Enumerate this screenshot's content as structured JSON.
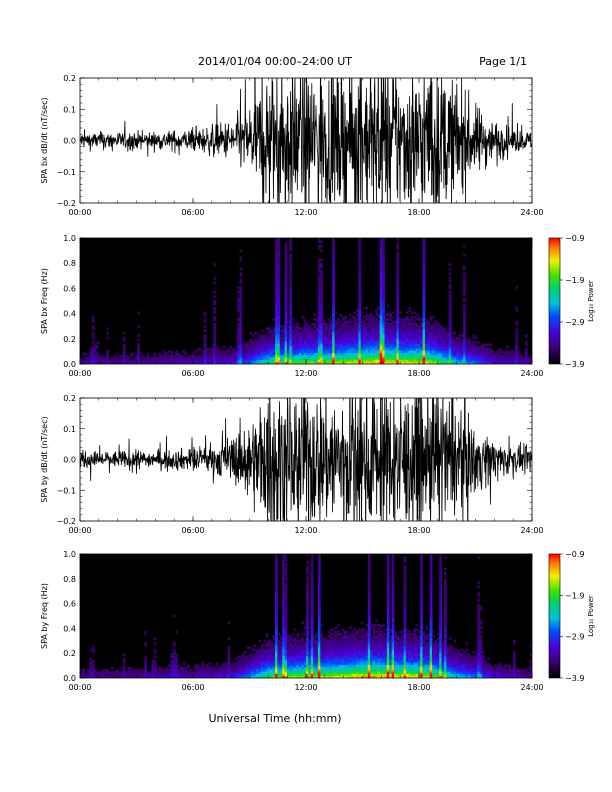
{
  "header": {
    "title": "2014/01/04   00:00–24:00 UT",
    "page": "Page 1/1"
  },
  "footer": {
    "xlabel": "Universal Time (hh:mm)"
  },
  "colors": {
    "trace": "#000000",
    "spectro_bg": "#000000"
  },
  "chart_data": [
    {
      "type": "line",
      "ylabel": "SPA bx dB/dt (nT/sec)",
      "xlim": [
        0,
        24
      ],
      "ylim": [
        -0.2,
        0.2
      ],
      "xticks": [
        "00:00",
        "06:00",
        "12:00",
        "18:00",
        "24:00"
      ],
      "yticks": [
        "−0.2",
        "−0.1",
        "0.0",
        "0.1",
        "0.2"
      ],
      "ytick_values": [
        -0.2,
        -0.1,
        0.0,
        0.1,
        0.2
      ],
      "series": [
        {
          "x": [
            0,
            2,
            4,
            6,
            7,
            8,
            9,
            10,
            11,
            12,
            13,
            14,
            15,
            16,
            17,
            18,
            19,
            20,
            21,
            22,
            23,
            24
          ],
          "amplitude": [
            0.03,
            0.03,
            0.03,
            0.04,
            0.05,
            0.07,
            0.12,
            0.25,
            0.25,
            0.25,
            0.25,
            0.25,
            0.25,
            0.25,
            0.25,
            0.25,
            0.25,
            0.2,
            0.12,
            0.07,
            0.04,
            0.03
          ]
        }
      ]
    },
    {
      "type": "heatmap",
      "ylabel": "SPA bx Freq (Hz)",
      "xlim": [
        0,
        24
      ],
      "ylim": [
        0.0,
        1.0
      ],
      "xticks": [
        "00:00",
        "06:00",
        "12:00",
        "18:00",
        "24:00"
      ],
      "yticks": [
        "0.0",
        "0.2",
        "0.4",
        "0.6",
        "0.8",
        "1.0"
      ],
      "ytick_values": [
        0.0,
        0.2,
        0.4,
        0.6,
        0.8,
        1.0
      ],
      "colorbar": {
        "label": "Log₁₀ Power",
        "ticks": [
          "−0.9",
          "−1.9",
          "−2.9",
          "−3.9"
        ],
        "tick_values": [
          -0.9,
          -1.9,
          -2.9,
          -3.9
        ],
        "range": [
          -3.9,
          -0.9
        ]
      },
      "activity": {
        "x": [
          0,
          3,
          6,
          8,
          9,
          10,
          11,
          12,
          13,
          14,
          15,
          16,
          17,
          18,
          19,
          20,
          21,
          22,
          24
        ],
        "level": [
          0.15,
          0.15,
          0.2,
          0.25,
          0.4,
          0.6,
          0.65,
          0.7,
          0.7,
          0.75,
          0.8,
          0.85,
          0.8,
          0.8,
          0.7,
          0.5,
          0.4,
          0.25,
          0.15
        ]
      }
    },
    {
      "type": "line",
      "ylabel": "SPA by dB/dt (nT/sec)",
      "xlim": [
        0,
        24
      ],
      "ylim": [
        -0.2,
        0.2
      ],
      "xticks": [
        "00:00",
        "06:00",
        "12:00",
        "18:00",
        "24:00"
      ],
      "yticks": [
        "−0.2",
        "−0.1",
        "0.0",
        "0.1",
        "0.2"
      ],
      "ytick_values": [
        -0.2,
        -0.1,
        0.0,
        0.1,
        0.2
      ],
      "series": [
        {
          "x": [
            0,
            2,
            4,
            6,
            7,
            8,
            9,
            10,
            11,
            12,
            13,
            14,
            15,
            16,
            17,
            18,
            19,
            20,
            21,
            22,
            23,
            24
          ],
          "amplitude": [
            0.03,
            0.03,
            0.03,
            0.04,
            0.05,
            0.08,
            0.14,
            0.25,
            0.25,
            0.25,
            0.25,
            0.25,
            0.25,
            0.25,
            0.25,
            0.25,
            0.25,
            0.2,
            0.12,
            0.07,
            0.05,
            0.04
          ]
        }
      ]
    },
    {
      "type": "heatmap",
      "ylabel": "SPA by Freq (Hz)",
      "xlim": [
        0,
        24
      ],
      "ylim": [
        0.0,
        1.0
      ],
      "xticks": [
        "00:00",
        "06:00",
        "12:00",
        "18:00",
        "24:00"
      ],
      "yticks": [
        "0.0",
        "0.2",
        "0.4",
        "0.6",
        "0.8",
        "1.0"
      ],
      "ytick_values": [
        0.0,
        0.2,
        0.4,
        0.6,
        0.8,
        1.0
      ],
      "colorbar": {
        "label": "Log₁₀ Power",
        "ticks": [
          "−0.9",
          "−1.9",
          "−2.9",
          "−3.9"
        ],
        "tick_values": [
          -0.9,
          -1.9,
          -2.9,
          -3.9
        ],
        "range": [
          -3.9,
          -0.9
        ]
      },
      "activity": {
        "x": [
          0,
          3,
          6,
          8,
          9,
          10,
          11,
          12,
          13,
          14,
          15,
          16,
          17,
          18,
          19,
          20,
          21,
          22,
          24
        ],
        "level": [
          0.15,
          0.15,
          0.2,
          0.25,
          0.45,
          0.65,
          0.7,
          0.75,
          0.75,
          0.8,
          0.85,
          0.85,
          0.8,
          0.8,
          0.7,
          0.5,
          0.4,
          0.25,
          0.15
        ]
      }
    }
  ]
}
